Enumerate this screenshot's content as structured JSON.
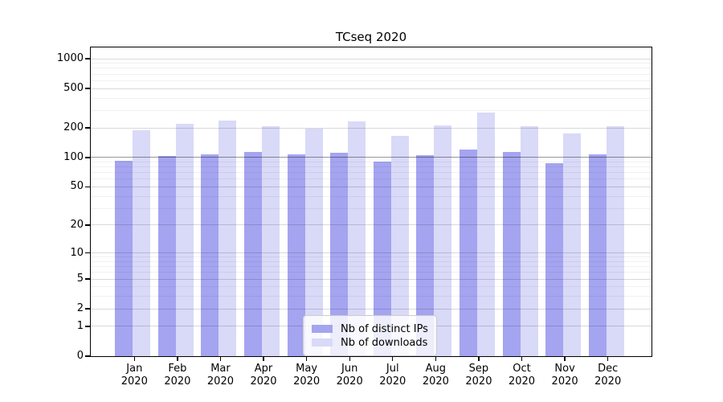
{
  "chart_data": {
    "type": "bar",
    "title": "TCseq 2020",
    "categories": [
      "Jan 2020",
      "Feb 2020",
      "Mar 2020",
      "Apr 2020",
      "May 2020",
      "Jun 2020",
      "Jul 2020",
      "Aug 2020",
      "Sep 2020",
      "Oct 2020",
      "Nov 2020",
      "Dec 2020"
    ],
    "series": [
      {
        "name": "Nb of distinct IPs",
        "color": "#a4a4f0",
        "values": [
          92,
          104,
          107,
          114,
          107,
          111,
          90,
          105,
          121,
          113,
          88,
          108
        ]
      },
      {
        "name": "Nb of downloads",
        "color": "#d9d9f8",
        "values": [
          190,
          220,
          237,
          209,
          197,
          233,
          165,
          212,
          286,
          207,
          177,
          209
        ]
      }
    ],
    "xlabel": "",
    "ylabel": "",
    "y_scale": "log1p",
    "ylim": [
      0,
      1300
    ],
    "y_major_ticks": [
      0,
      1,
      2,
      5,
      10,
      20,
      50,
      100,
      200,
      500,
      1000
    ],
    "y_minor_gridlines": [
      3,
      4,
      6,
      7,
      8,
      9,
      30,
      40,
      60,
      70,
      80,
      90,
      300,
      400,
      600,
      700,
      800,
      900
    ],
    "reference_line_y": 100,
    "grid": "on",
    "legend_position": "lower center"
  },
  "colors": {
    "bar_distinct_ips": "#a4a4f0",
    "bar_downloads": "#d9d9f8",
    "spine": "#000000",
    "grid_major": "#d9d9d9",
    "grid_minor": "#efefef",
    "grid_reference": "#b3b3b3",
    "legend_border": "#cccccc"
  }
}
